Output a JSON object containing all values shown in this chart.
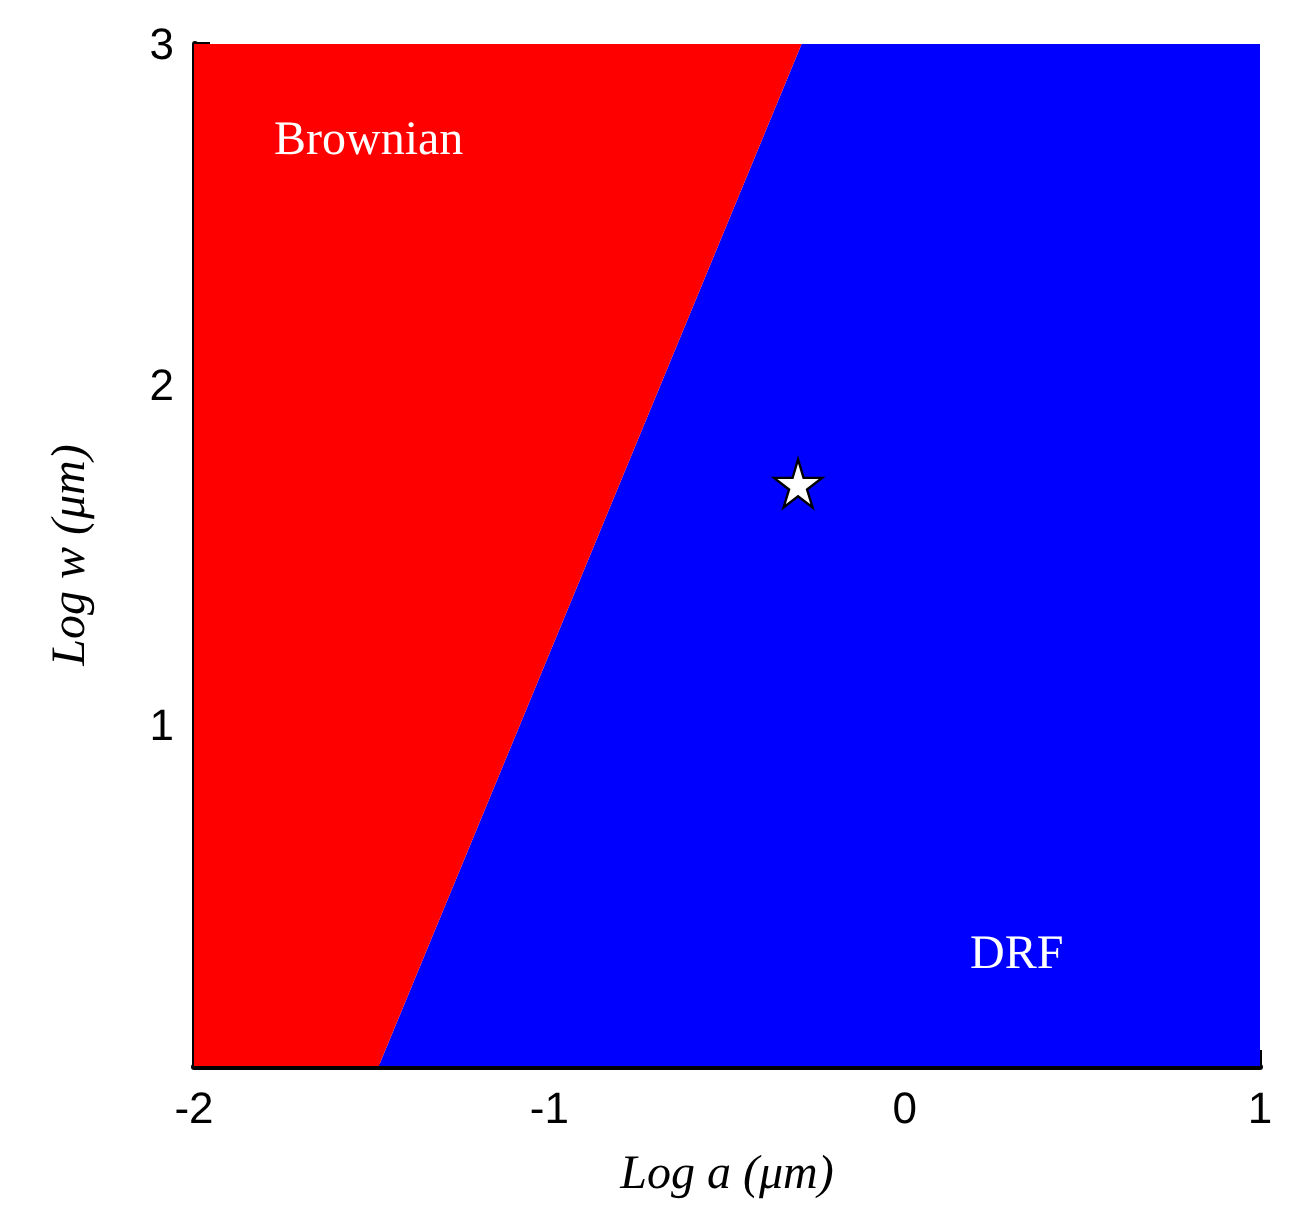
{
  "chart_data": {
    "type": "area",
    "stacked": true,
    "xlabel": "Log a (μm)",
    "ylabel": "Log w (μm)",
    "x": [
      -2,
      -1.48,
      -0.29,
      1
    ],
    "series": [
      {
        "name": "DRF",
        "color": "#0000ff",
        "values": [
          0,
          0,
          3,
          3
        ]
      },
      {
        "name": "Brownian",
        "color": "#ff0000",
        "x": [
          -2,
          -1.48,
          -0.29
        ],
        "values": [
          3,
          3,
          0
        ]
      },
      {
        "type": "scatter",
        "marker": "star",
        "x": [
          -0.3
        ],
        "values": [
          1.71
        ],
        "color": "#ffffff"
      }
    ],
    "xlim": [
      -2,
      1
    ],
    "ylim": [
      0,
      3
    ],
    "xticks": [
      -2,
      -1,
      0,
      1
    ],
    "yticks": [
      1,
      2,
      3
    ]
  }
}
